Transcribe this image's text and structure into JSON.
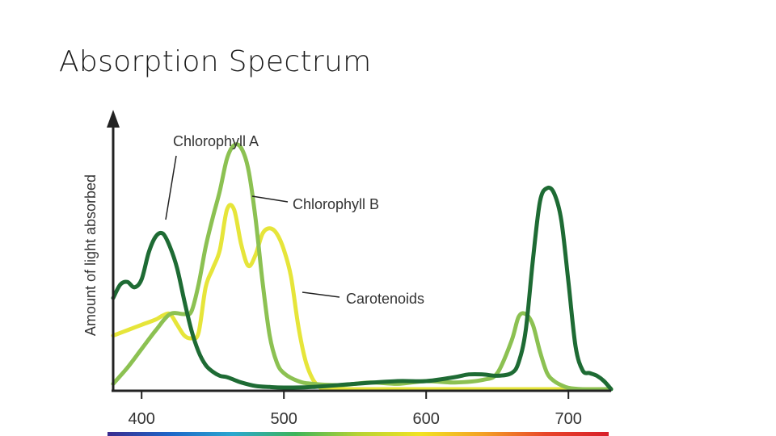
{
  "page": {
    "title": "Absorption Spectrum"
  },
  "chart_data": {
    "type": "line",
    "title": "Absorption Spectrum",
    "xlabel": "",
    "ylabel": "Amount of light absorbed",
    "xlim": [
      380,
      730
    ],
    "ylim": [
      0,
      100
    ],
    "x_ticks": [
      400,
      500,
      600,
      700
    ],
    "x_tick_labels": [
      "400",
      "500",
      "600",
      "700"
    ],
    "grid": false,
    "y_tick_labels_shown": false,
    "spectrum_bar": true,
    "spectrum_colors": [
      "#3a2b8f",
      "#1d66c8",
      "#2aa7cf",
      "#3db45a",
      "#b7d233",
      "#f2e322",
      "#f3a025",
      "#e8452a",
      "#d81f2a"
    ],
    "series": [
      {
        "name": "Chlorophyll A",
        "color": "#1e6b34",
        "x": [
          380,
          385,
          390,
          395,
          400,
          405,
          410,
          415,
          420,
          425,
          430,
          435,
          440,
          445,
          450,
          455,
          460,
          465,
          470,
          480,
          490,
          500,
          520,
          550,
          580,
          600,
          620,
          630,
          640,
          650,
          660,
          665,
          670,
          675,
          680,
          685,
          690,
          695,
          700,
          705,
          710,
          715,
          720,
          725,
          730
        ],
        "y": [
          34,
          39,
          40,
          38,
          41,
          51,
          57,
          58,
          53,
          45,
          33,
          22,
          14,
          9,
          6.5,
          5,
          4.5,
          3.5,
          2.5,
          1.2,
          0.8,
          0.6,
          0.8,
          2,
          3,
          3,
          4.5,
          5.5,
          5.5,
          5,
          6,
          10,
          22,
          48,
          70,
          75,
          73,
          63,
          40,
          16,
          7,
          6,
          5,
          3,
          0
        ]
      },
      {
        "name": "Chlorophyll B",
        "color": "#8cc152",
        "x": [
          380,
          390,
          400,
          410,
          420,
          430,
          435,
          440,
          445,
          450,
          455,
          460,
          465,
          470,
          475,
          480,
          485,
          490,
          495,
          500,
          510,
          520,
          540,
          560,
          580,
          600,
          620,
          640,
          650,
          660,
          665,
          670,
          675,
          680,
          685,
          690,
          695,
          700,
          710,
          730
        ],
        "y": [
          2,
          8,
          15,
          22,
          28,
          28,
          29,
          39,
          53,
          64,
          74,
          86,
          91,
          90,
          82,
          64,
          40,
          20,
          10,
          6,
          3,
          2,
          1.5,
          2.5,
          2,
          3,
          2.5,
          3.5,
          6,
          18,
          27,
          28,
          24,
          14,
          6,
          3,
          1.5,
          0.5,
          0,
          0
        ]
      },
      {
        "name": "Carotenoids",
        "color": "#e6e53a",
        "x": [
          380,
          390,
          400,
          410,
          415,
          420,
          425,
          430,
          435,
          440,
          445,
          450,
          455,
          460,
          465,
          470,
          475,
          480,
          485,
          490,
          495,
          500,
          505,
          510,
          515,
          520,
          525,
          530,
          550,
          580,
          600,
          610,
          620,
          640,
          660,
          680,
          700,
          730
        ],
        "y": [
          20,
          22,
          24,
          26,
          27.5,
          28,
          24,
          20,
          19,
          21,
          38,
          45,
          52,
          67,
          67,
          54,
          46,
          50,
          58,
          60,
          58,
          52,
          42,
          24,
          11,
          4,
          0.8,
          0.1,
          0,
          0,
          0,
          0,
          0,
          0,
          0,
          0,
          0,
          0
        ]
      }
    ],
    "annotations": [
      {
        "text": "Chlorophyll A",
        "series": "Chlorophyll A"
      },
      {
        "text": "Chlorophyll B",
        "series": "Chlorophyll B"
      },
      {
        "text": "Carotenoids",
        "series": "Carotenoids"
      }
    ]
  }
}
